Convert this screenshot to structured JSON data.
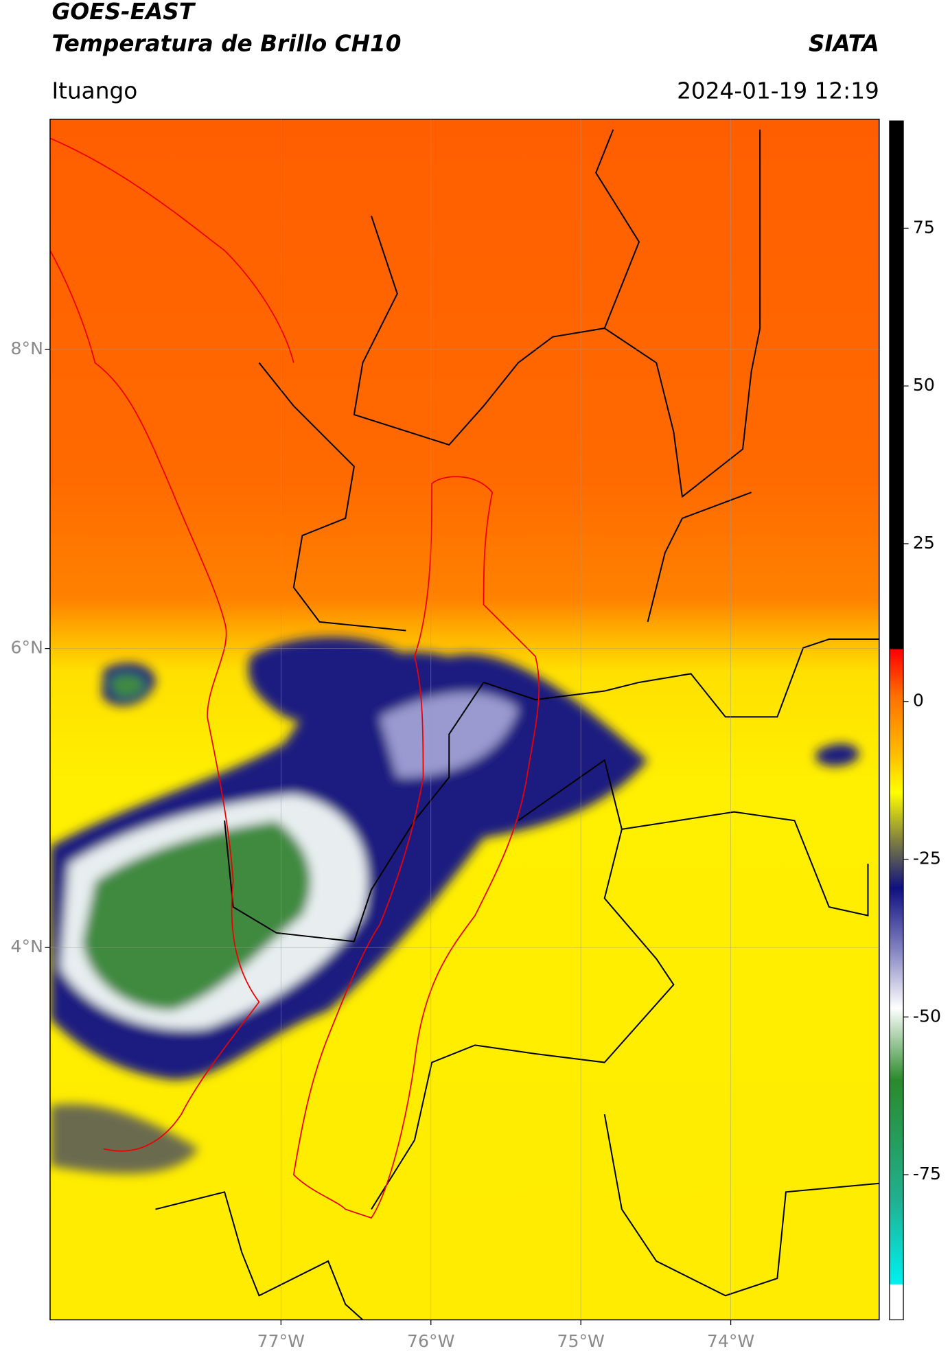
{
  "header": {
    "satellite": "GOES-EAST",
    "product": "Temperatura de Brillo CH10",
    "brand": "SIATA",
    "location": "Ituango",
    "datetime": "2024-01-19 12:19"
  },
  "map": {
    "lat_range": [
      1.51,
      9.54
    ],
    "lon_range": [
      -78.54,
      -73.01
    ],
    "lat_ticks": [
      {
        "value": 8,
        "label": "8°N"
      },
      {
        "value": 6,
        "label": "6°N"
      },
      {
        "value": 4,
        "label": "4°N"
      }
    ],
    "lon_ticks": [
      {
        "value": -77,
        "label": "77°W"
      },
      {
        "value": -76,
        "label": "76°W"
      },
      {
        "value": -75,
        "label": "75°W"
      },
      {
        "value": -74,
        "label": "74°W"
      }
    ]
  },
  "colorbar": {
    "range": [
      -98,
      92
    ],
    "ticks": [
      -75,
      -50,
      -25,
      0,
      25,
      50,
      75
    ]
  }
}
